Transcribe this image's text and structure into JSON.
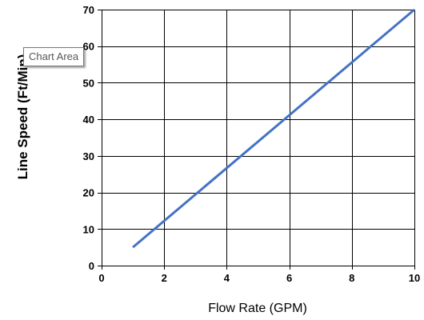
{
  "chart_data": {
    "type": "line",
    "title": "",
    "xlabel": "Flow Rate (GPM)",
    "ylabel": "Line Speed (Ft/Min)",
    "xlim": [
      0,
      10
    ],
    "ylim": [
      0,
      70
    ],
    "xticks": [
      0,
      2,
      4,
      6,
      8,
      10
    ],
    "yticks": [
      0,
      10,
      20,
      30,
      40,
      50,
      60,
      70
    ],
    "grid": true,
    "legend": "none",
    "series": [
      {
        "x": [
          1,
          10
        ],
        "y": [
          5,
          70
        ],
        "color": "#4472C4"
      }
    ]
  },
  "tooltip": {
    "text": "Chart Area"
  }
}
